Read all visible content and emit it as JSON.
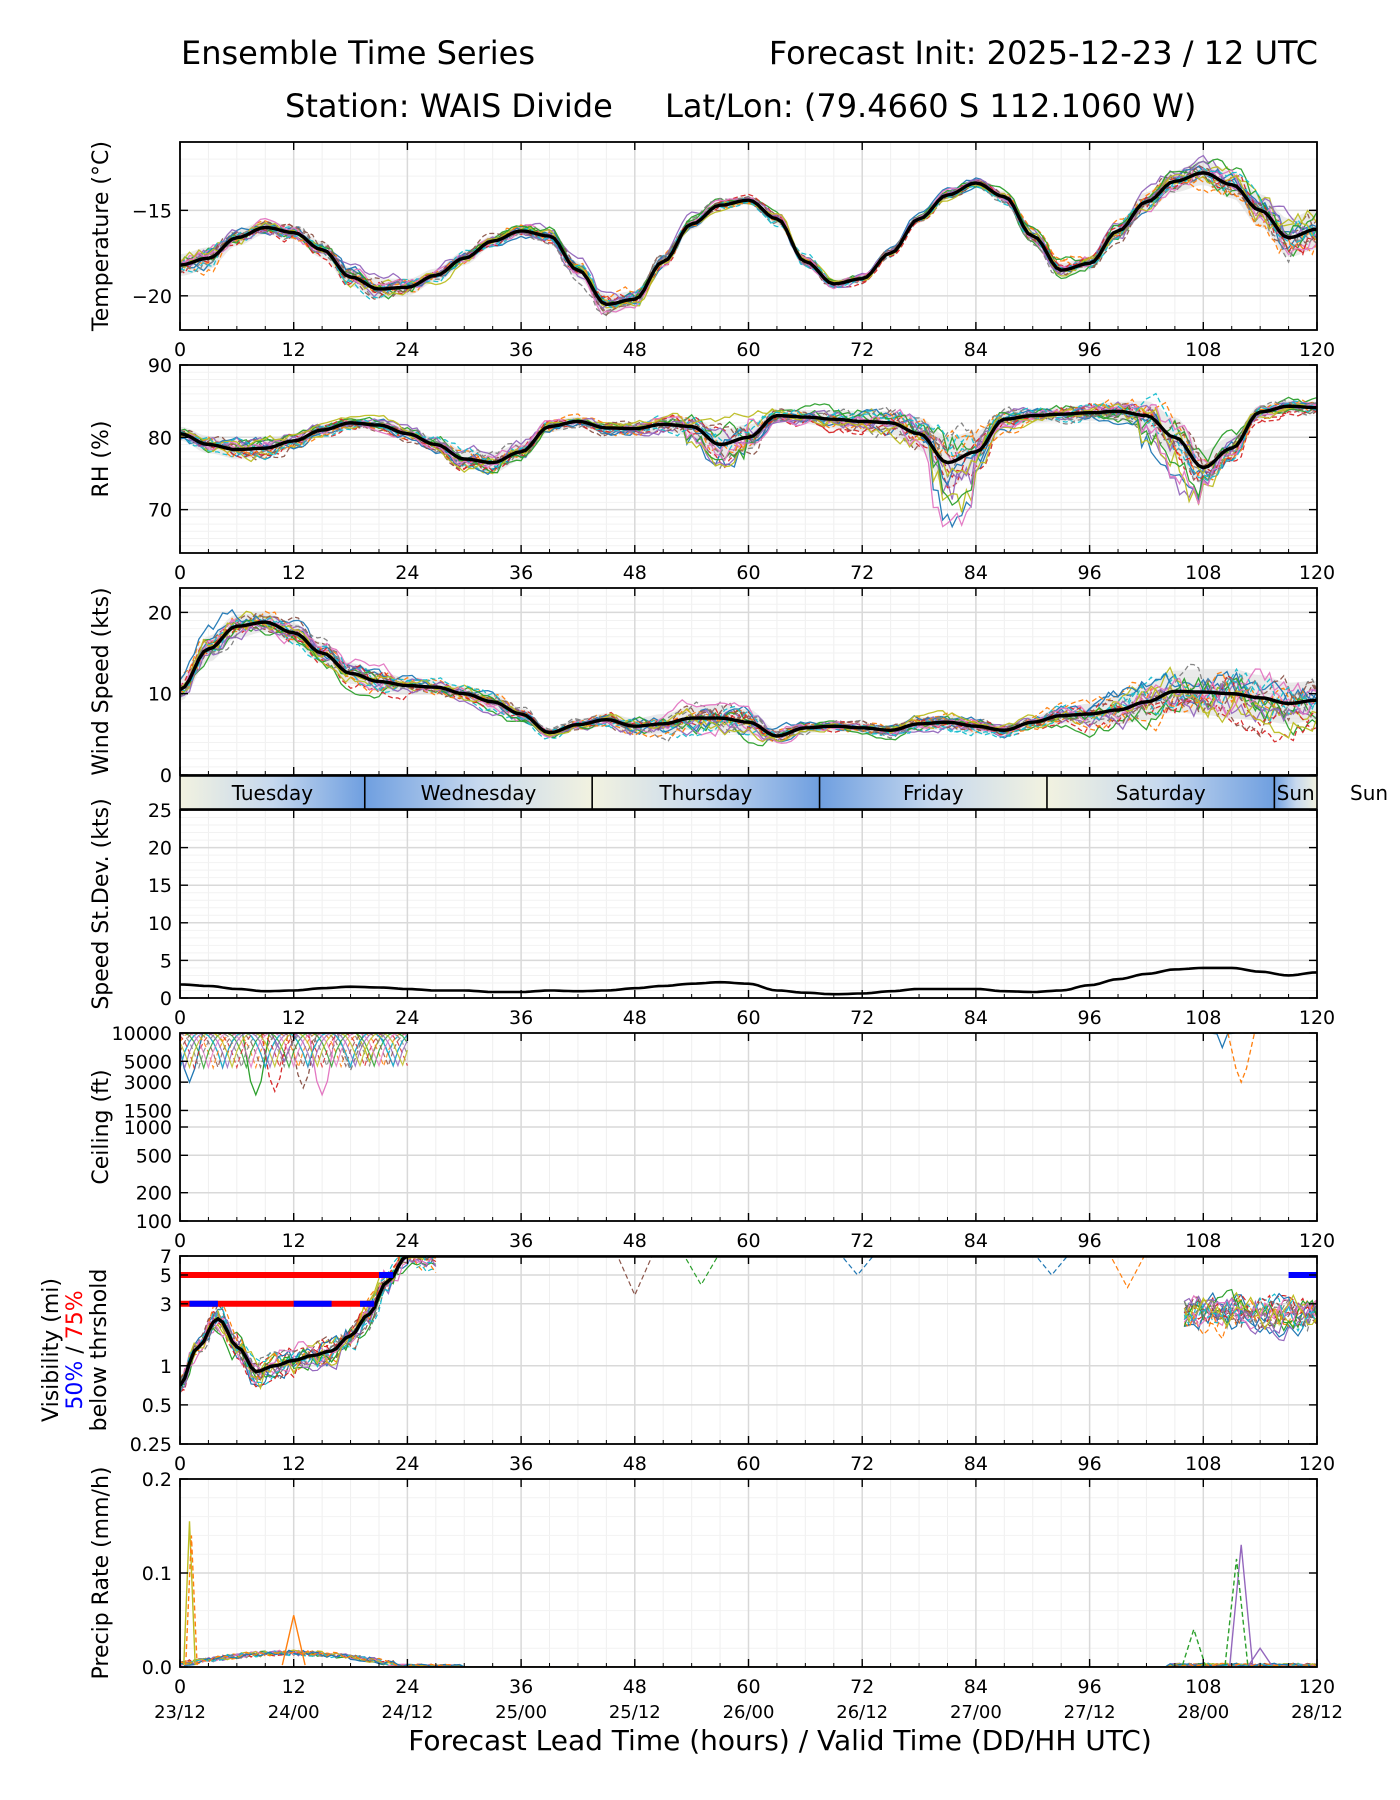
{
  "header": {
    "title_left": "Ensemble Time Series",
    "title_right": "Forecast Init: 2025-12-23 / 12 UTC",
    "station": "Station: WAIS Divide",
    "latlon": "Lat/Lon: (79.4660 S 112.1060 W)"
  },
  "xaxis": {
    "label": "Forecast Lead Time (hours) / Valid Time (DD/HH UTC)",
    "ticks": [
      0,
      12,
      24,
      36,
      48,
      60,
      72,
      84,
      96,
      108,
      120
    ],
    "valid_labels": [
      "23/12",
      "24/00",
      "24/12",
      "25/00",
      "25/12",
      "26/00",
      "26/12",
      "27/00",
      "27/12",
      "28/00",
      "28/12"
    ]
  },
  "day_band": {
    "days": [
      "Tuesday",
      "Wednesday",
      "Thursday",
      "Friday",
      "Saturday",
      "Sun"
    ],
    "boundaries_hours": [
      19.5,
      43.5,
      67.5,
      91.5,
      115.5
    ]
  },
  "colors": {
    "ensemble": [
      "#1f77b4",
      "#ff7f0e",
      "#2ca02c",
      "#d62728",
      "#9467bd",
      "#8c564b",
      "#e377c2",
      "#7f7f7f",
      "#bcbd22",
      "#17becf"
    ],
    "mean": "#000000",
    "band_dark": "#6f9fe0",
    "band_light": "#f2f2e0",
    "vis50": "#0000ff",
    "vis75": "#ff0000"
  },
  "chart_data": [
    {
      "type": "line",
      "id": "temperature",
      "ylabel": "Temperature (°C)",
      "ylim": [
        -22,
        -11
      ],
      "yticks": [
        -20,
        -15
      ],
      "ytick_labels": [
        "−20",
        "−15"
      ],
      "mean_x": [
        0,
        3,
        6,
        9,
        12,
        15,
        18,
        21,
        24,
        27,
        30,
        33,
        36,
        39,
        42,
        45,
        48,
        51,
        54,
        57,
        60,
        63,
        66,
        69,
        72,
        75,
        78,
        81,
        84,
        87,
        90,
        93,
        96,
        99,
        102,
        105,
        108,
        111,
        114,
        117,
        120
      ],
      "mean": [
        -18.2,
        -17.8,
        -16.6,
        -16.0,
        -16.3,
        -17.3,
        -18.9,
        -19.6,
        -19.5,
        -18.8,
        -17.8,
        -16.8,
        -16.2,
        -16.5,
        -18.5,
        -20.5,
        -20.2,
        -18.0,
        -15.8,
        -14.7,
        -14.4,
        -15.5,
        -18.0,
        -19.3,
        -19.0,
        -17.5,
        -15.5,
        -14.1,
        -13.4,
        -14.2,
        -16.5,
        -18.5,
        -18.1,
        -16.2,
        -14.5,
        -13.3,
        -12.8,
        -13.5,
        -15.0,
        -16.6,
        -16.1
      ],
      "spread": [
        0.8,
        0.8,
        0.6,
        0.5,
        0.5,
        0.6,
        0.7,
        0.7,
        0.6,
        0.5,
        0.5,
        0.4,
        0.4,
        0.5,
        0.6,
        0.7,
        0.6,
        0.5,
        0.4,
        0.3,
        0.3,
        0.4,
        0.4,
        0.3,
        0.3,
        0.3,
        0.3,
        0.3,
        0.3,
        0.4,
        0.5,
        0.5,
        0.5,
        0.6,
        0.7,
        0.8,
        0.9,
        1.0,
        1.2,
        1.4,
        1.5
      ],
      "members": 20,
      "std_line": false
    },
    {
      "type": "line",
      "id": "rh",
      "ylabel": "RH (%)",
      "ylim": [
        64,
        90
      ],
      "yticks": [
        70,
        80,
        90
      ],
      "ytick_labels": [
        "70",
        "80",
        "90"
      ],
      "mean_x": [
        0,
        3,
        6,
        9,
        12,
        15,
        18,
        21,
        24,
        27,
        30,
        33,
        36,
        39,
        42,
        45,
        48,
        51,
        54,
        57,
        60,
        63,
        66,
        69,
        72,
        75,
        78,
        81,
        84,
        87,
        90,
        93,
        96,
        99,
        102,
        105,
        108,
        111,
        114,
        117,
        120
      ],
      "mean": [
        80.5,
        79.0,
        78.3,
        78.5,
        79.5,
        81.0,
        82.0,
        81.7,
        80.5,
        79.0,
        77.0,
        76.5,
        78.0,
        81.5,
        82.2,
        81.3,
        81.2,
        81.8,
        81.5,
        79.0,
        80.0,
        83.0,
        82.8,
        82.5,
        82.2,
        82.0,
        80.5,
        76.5,
        78.0,
        82.5,
        83.0,
        83.2,
        83.4,
        83.6,
        83.0,
        80.0,
        75.8,
        78.5,
        83.5,
        84.3,
        84.1
      ],
      "spread": [
        1.2,
        1.5,
        1.6,
        1.5,
        1.3,
        1.0,
        0.8,
        0.9,
        1.0,
        1.2,
        1.6,
        1.8,
        1.5,
        1.0,
        0.8,
        0.9,
        1.0,
        1.2,
        1.6,
        2.6,
        2.2,
        1.0,
        1.2,
        1.6,
        1.8,
        2.0,
        2.8,
        4.5,
        3.5,
        1.5,
        1.2,
        1.2,
        1.4,
        1.6,
        2.5,
        3.5,
        3.0,
        2.0,
        1.2,
        1.0,
        1.0
      ],
      "members": 20,
      "std_line": false
    },
    {
      "type": "line",
      "id": "wind",
      "ylabel": "Wind Speed (kts)",
      "ylim": [
        0,
        23
      ],
      "yticks": [
        0,
        10,
        20
      ],
      "ytick_labels": [
        "0",
        "10",
        "20"
      ],
      "mean_x": [
        0,
        3,
        6,
        9,
        12,
        15,
        18,
        21,
        24,
        27,
        30,
        33,
        36,
        39,
        42,
        45,
        48,
        51,
        54,
        57,
        60,
        63,
        66,
        69,
        72,
        75,
        78,
        81,
        84,
        87,
        90,
        93,
        96,
        99,
        102,
        105,
        108,
        111,
        114,
        117,
        120
      ],
      "mean": [
        10.5,
        15.5,
        18.3,
        18.8,
        17.5,
        15.0,
        12.5,
        11.5,
        11.0,
        10.8,
        10.0,
        9.0,
        7.5,
        5.2,
        6.2,
        6.8,
        6.0,
        6.3,
        7.0,
        7.0,
        6.5,
        4.8,
        5.8,
        6.0,
        5.8,
        5.5,
        6.3,
        6.5,
        6.0,
        5.5,
        6.5,
        7.3,
        7.5,
        8.0,
        9.0,
        10.3,
        10.2,
        10.0,
        9.5,
        8.8,
        9.2
      ],
      "spread": [
        1.8,
        2.0,
        1.8,
        1.5,
        1.5,
        1.6,
        1.6,
        1.5,
        1.2,
        1.1,
        1.1,
        1.2,
        1.0,
        0.6,
        0.8,
        1.0,
        1.2,
        1.5,
        1.8,
        2.0,
        2.0,
        1.0,
        0.8,
        0.8,
        0.7,
        0.8,
        1.0,
        1.1,
        1.1,
        0.8,
        0.9,
        1.2,
        1.6,
        2.2,
        2.8,
        3.2,
        3.5,
        3.8,
        3.5,
        3.2,
        3.0
      ],
      "members": 20,
      "std_line": false
    },
    {
      "type": "line",
      "id": "speed_std",
      "ylabel": "Speed St.Dev. (kts)",
      "ylim": [
        0,
        25
      ],
      "yticks": [
        0,
        5,
        10,
        15,
        20,
        25
      ],
      "ytick_labels": [
        "0",
        "5",
        "10",
        "15",
        "20",
        "25"
      ],
      "mean_x": [
        0,
        3,
        6,
        9,
        12,
        15,
        18,
        21,
        24,
        27,
        30,
        33,
        36,
        39,
        42,
        45,
        48,
        51,
        54,
        57,
        60,
        63,
        66,
        69,
        72,
        75,
        78,
        81,
        84,
        87,
        90,
        93,
        96,
        99,
        102,
        105,
        108,
        111,
        114,
        117,
        120
      ],
      "mean": [
        1.8,
        1.6,
        1.2,
        0.9,
        1.0,
        1.3,
        1.5,
        1.4,
        1.2,
        1.0,
        1.0,
        0.8,
        0.8,
        1.0,
        0.9,
        1.0,
        1.3,
        1.6,
        1.9,
        2.1,
        1.9,
        1.0,
        0.7,
        0.5,
        0.6,
        0.9,
        1.2,
        1.2,
        1.2,
        0.9,
        0.8,
        1.0,
        1.7,
        2.5,
        3.2,
        3.8,
        4.0,
        4.0,
        3.5,
        3.0,
        3.4
      ],
      "spread": null,
      "members": 0,
      "std_line": true
    },
    {
      "type": "line",
      "id": "ceiling",
      "ylabel": "Ceiling (ft)",
      "yscale": "log",
      "ylim": [
        100,
        10000
      ],
      "yticks": [
        100,
        200,
        500,
        1000,
        1500,
        3000,
        5000,
        10000
      ],
      "ytick_labels": [
        "100",
        "200",
        "500",
        "1000",
        "1500",
        "3000",
        "5000",
        "10000"
      ],
      "members_desc": "ensemble ceilings mostly above 10000 ft; dips to about 2000–3000 ft near hours 0–23 and 112",
      "dips": [
        [
          1,
          3000
        ],
        [
          5,
          6000
        ],
        [
          8,
          2200
        ],
        [
          10,
          2400
        ],
        [
          11,
          5000
        ],
        [
          13,
          2600
        ],
        [
          15,
          2200
        ],
        [
          18,
          4000
        ],
        [
          20,
          5000
        ],
        [
          22,
          6000
        ],
        [
          110,
          7000
        ],
        [
          112,
          3000
        ]
      ]
    },
    {
      "type": "line",
      "id": "visibility",
      "ylabel": "Visibility (mi)",
      "ylabel_50": "50%",
      "ylabel_sep": " / ",
      "ylabel_75": "75%",
      "ylabel_below": "below thrshold",
      "yscale": "log",
      "ylim": [
        0.25,
        7
      ],
      "yticks": [
        0.25,
        0.5,
        1,
        3,
        5,
        7
      ],
      "ytick_labels": [
        "0.25",
        "0.5",
        "1",
        "3",
        "5",
        "7"
      ],
      "mean_x": [
        0,
        2,
        4,
        6,
        8,
        10,
        12,
        14,
        16,
        18,
        20,
        22,
        24
      ],
      "mean": [
        0.7,
        1.4,
        2.3,
        1.4,
        0.9,
        1.0,
        1.1,
        1.2,
        1.3,
        1.7,
        2.5,
        4.5,
        7.0
      ],
      "threshold_75": [
        {
          "level": 5,
          "from": 0,
          "to": 22
        },
        {
          "level": 3,
          "from": 0,
          "to": 20.5
        }
      ],
      "threshold_50": [
        {
          "level": 5,
          "from": 21,
          "to": 22.5
        },
        {
          "level": 3,
          "from": 1,
          "to": 4
        },
        {
          "level": 3,
          "from": 12,
          "to": 16
        },
        {
          "level": 3,
          "from": 19,
          "to": 20.5
        },
        {
          "level": 5,
          "from": 117,
          "to": 120
        }
      ]
    },
    {
      "type": "line",
      "id": "precip",
      "ylabel": "Precip Rate (mm/h)",
      "ylim": [
        0,
        0.2
      ],
      "yticks": [
        0.0,
        0.1,
        0.2
      ],
      "ytick_labels": [
        "0.0",
        "0.1",
        "0.2"
      ],
      "spikes": [
        [
          1,
          0.155
        ],
        [
          1.2,
          0.14
        ],
        [
          12,
          0.055
        ],
        [
          107,
          0.04
        ],
        [
          112,
          0.13
        ],
        [
          111.5,
          0.115
        ],
        [
          114,
          0.02
        ]
      ]
    }
  ]
}
